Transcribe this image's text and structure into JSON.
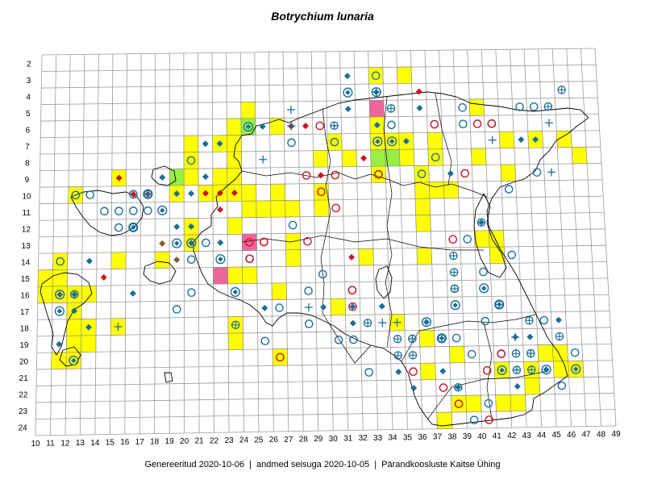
{
  "title": "Botrychium lunaria",
  "footer": "Genereeritud 2020-10-06  |  andmed seisuga 2020-10-05  |  Pärandkoosluste Kaitse Ühing",
  "colors": {
    "yellow": "#ffff00",
    "green": "#99ee44",
    "pink": "#ee6699",
    "teal": "#1a6f99",
    "red": "#cc1122",
    "brown": "#8a5a2b"
  },
  "chart_data": {
    "type": "grid-map",
    "x_ticks": [
      "10",
      "11",
      "12",
      "13",
      "14",
      "15",
      "16",
      "17",
      "18",
      "19",
      "20",
      "21",
      "22",
      "23",
      "24",
      "25",
      "26",
      "27",
      "28",
      "29",
      "30",
      "31",
      "32",
      "33",
      "34",
      "35",
      "36",
      "37",
      "38",
      "39",
      "40",
      "41",
      "42",
      "43",
      "44",
      "45",
      "46",
      "47",
      "48",
      "49"
    ],
    "y_ticks": [
      "2",
      "3",
      "4",
      "5",
      "6",
      "7",
      "8",
      "9",
      "10",
      "11",
      "12",
      "13",
      "14",
      "15",
      "16",
      "17",
      "18",
      "19",
      "20",
      "21",
      "22",
      "23",
      "24"
    ],
    "cells": {
      "yellow": [
        [
          33,
          3
        ],
        [
          35,
          3
        ],
        [
          24,
          5
        ],
        [
          40,
          5
        ],
        [
          23,
          6
        ],
        [
          26,
          6
        ],
        [
          33,
          6
        ],
        [
          20,
          7
        ],
        [
          22,
          7
        ],
        [
          23,
          7
        ],
        [
          30,
          7
        ],
        [
          33,
          7
        ],
        [
          34,
          7
        ],
        [
          35,
          7
        ],
        [
          37,
          7
        ],
        [
          42,
          7
        ],
        [
          44,
          7
        ],
        [
          46,
          7
        ],
        [
          20,
          8
        ],
        [
          23,
          8
        ],
        [
          29,
          8
        ],
        [
          31,
          8
        ],
        [
          35,
          8
        ],
        [
          37,
          8
        ],
        [
          40,
          8
        ],
        [
          47,
          8
        ],
        [
          15,
          9
        ],
        [
          20,
          9
        ],
        [
          22,
          9
        ],
        [
          23,
          9
        ],
        [
          33,
          9
        ],
        [
          36,
          9
        ],
        [
          42,
          9
        ],
        [
          12,
          10
        ],
        [
          19,
          10
        ],
        [
          21,
          10
        ],
        [
          22,
          10
        ],
        [
          23,
          10
        ],
        [
          24,
          10
        ],
        [
          26,
          10
        ],
        [
          29,
          10
        ],
        [
          36,
          10
        ],
        [
          37,
          10
        ],
        [
          38,
          10
        ],
        [
          24,
          11
        ],
        [
          25,
          11
        ],
        [
          26,
          11
        ],
        [
          27,
          11
        ],
        [
          36,
          11
        ],
        [
          29,
          11
        ],
        [
          20,
          12
        ],
        [
          23,
          12
        ],
        [
          36,
          12
        ],
        [
          20,
          13
        ],
        [
          27,
          13
        ],
        [
          40,
          13
        ],
        [
          41,
          13
        ],
        [
          11,
          14
        ],
        [
          15,
          14
        ],
        [
          18,
          14
        ],
        [
          27,
          14
        ],
        [
          32,
          14
        ],
        [
          36,
          14
        ],
        [
          41,
          14
        ],
        [
          10,
          15
        ],
        [
          11,
          15
        ],
        [
          24,
          15
        ],
        [
          10,
          16
        ],
        [
          11,
          16
        ],
        [
          12,
          16
        ],
        [
          13,
          16
        ],
        [
          26,
          16
        ],
        [
          23,
          15
        ],
        [
          12,
          17
        ],
        [
          30,
          17
        ],
        [
          12,
          18
        ],
        [
          13,
          18
        ],
        [
          15,
          18
        ],
        [
          23,
          18
        ],
        [
          34,
          18
        ],
        [
          12,
          19
        ],
        [
          13,
          19
        ],
        [
          23,
          19
        ],
        [
          36,
          19
        ],
        [
          26,
          20
        ],
        [
          11,
          20
        ],
        [
          12,
          20
        ],
        [
          38,
          20
        ],
        [
          44,
          20
        ],
        [
          45,
          20
        ],
        [
          36,
          21
        ],
        [
          41,
          21
        ],
        [
          43,
          21
        ],
        [
          45,
          21
        ],
        [
          46,
          21
        ],
        [
          43,
          22
        ],
        [
          38,
          23
        ],
        [
          39,
          23
        ],
        [
          41,
          23
        ],
        [
          42,
          23
        ],
        [
          37,
          24
        ]
      ],
      "green": [
        [
          24,
          6
        ],
        [
          19,
          9
        ],
        [
          33,
          8
        ],
        [
          34,
          8
        ]
      ],
      "pink": [
        [
          33,
          5
        ],
        [
          22,
          15
        ],
        [
          24,
          13
        ]
      ]
    },
    "symbols": {
      "open_circle_teal": [
        [
          33,
          3
        ],
        [
          43,
          5
        ],
        [
          44,
          5
        ],
        [
          39,
          5
        ],
        [
          41,
          6
        ],
        [
          34,
          6
        ],
        [
          27,
          7
        ],
        [
          39,
          6
        ],
        [
          37,
          8
        ],
        [
          20,
          8
        ],
        [
          44,
          9
        ],
        [
          12,
          10
        ],
        [
          13,
          10
        ],
        [
          16,
          10
        ],
        [
          17,
          10
        ],
        [
          14,
          11
        ],
        [
          15,
          11
        ],
        [
          16,
          11
        ],
        [
          17,
          11
        ],
        [
          15,
          12
        ],
        [
          16,
          12
        ],
        [
          11,
          14
        ],
        [
          20,
          14
        ],
        [
          12,
          16
        ],
        [
          24,
          14
        ],
        [
          28,
          16
        ],
        [
          29,
          15
        ],
        [
          26,
          17
        ],
        [
          31,
          16
        ],
        [
          25,
          19
        ],
        [
          35,
          19
        ],
        [
          40,
          12
        ],
        [
          39,
          13
        ],
        [
          42,
          14
        ],
        [
          40,
          15
        ],
        [
          38,
          16
        ],
        [
          40,
          18
        ],
        [
          44,
          18
        ],
        [
          41,
          20
        ],
        [
          39,
          20
        ],
        [
          42,
          21
        ],
        [
          37,
          19
        ],
        [
          38,
          19
        ],
        [
          36,
          9
        ],
        [
          30,
          7
        ],
        [
          33,
          9
        ],
        [
          28,
          18
        ],
        [
          30,
          19
        ],
        [
          31,
          19
        ],
        [
          43,
          20
        ],
        [
          19,
          17
        ],
        [
          20,
          16
        ],
        [
          21,
          13
        ],
        [
          27,
          12
        ],
        [
          42,
          10
        ],
        [
          38,
          22
        ],
        [
          46,
          20
        ],
        [
          39,
          24
        ],
        [
          45,
          22
        ],
        [
          40,
          23
        ],
        [
          32,
          21
        ]
      ],
      "open_circle_red": [
        [
          29,
          6
        ],
        [
          37,
          6
        ],
        [
          40,
          6
        ],
        [
          41,
          6
        ],
        [
          39,
          9
        ],
        [
          24,
          13
        ],
        [
          24,
          14
        ],
        [
          29,
          10
        ],
        [
          30,
          11
        ],
        [
          28,
          9
        ],
        [
          30,
          9
        ],
        [
          33,
          9
        ],
        [
          31,
          17
        ],
        [
          31,
          16
        ],
        [
          28,
          13
        ],
        [
          25,
          13
        ],
        [
          35,
          21
        ],
        [
          26,
          20
        ],
        [
          40,
          21
        ],
        [
          38,
          13
        ],
        [
          41,
          20
        ],
        [
          37,
          22
        ],
        [
          38,
          23
        ],
        [
          40,
          24
        ],
        [
          25,
          13
        ]
      ],
      "diamond_teal": [
        [
          31,
          3
        ],
        [
          33,
          4
        ],
        [
          36,
          5
        ],
        [
          31,
          5
        ],
        [
          21,
          7
        ],
        [
          25,
          6
        ],
        [
          27,
          6
        ],
        [
          33,
          6
        ],
        [
          35,
          7
        ],
        [
          22,
          7
        ],
        [
          43,
          7
        ],
        [
          44,
          7
        ],
        [
          18,
          9
        ],
        [
          21,
          9
        ],
        [
          38,
          9
        ],
        [
          20,
          10
        ],
        [
          19,
          10
        ],
        [
          19,
          12
        ],
        [
          20,
          12
        ],
        [
          13,
          14
        ],
        [
          16,
          16
        ],
        [
          12,
          17
        ],
        [
          13,
          18
        ],
        [
          12,
          16
        ],
        [
          11,
          19
        ],
        [
          20,
          13
        ],
        [
          22,
          13
        ],
        [
          25,
          17
        ],
        [
          29,
          17
        ],
        [
          31,
          17
        ],
        [
          31,
          18
        ],
        [
          33,
          17
        ],
        [
          36,
          18
        ],
        [
          40,
          12
        ],
        [
          43,
          19
        ],
        [
          45,
          18
        ],
        [
          42,
          19
        ],
        [
          44,
          21
        ],
        [
          42,
          22
        ],
        [
          35,
          22
        ],
        [
          37,
          21
        ],
        [
          34,
          21
        ],
        [
          38,
          22
        ]
      ],
      "diamond_red": [
        [
          15,
          9
        ],
        [
          16,
          10
        ],
        [
          17,
          10
        ],
        [
          14,
          15
        ],
        [
          21,
          10
        ],
        [
          22,
          10
        ],
        [
          23,
          10
        ],
        [
          27,
          6
        ],
        [
          28,
          6
        ],
        [
          29,
          9
        ],
        [
          32,
          8
        ],
        [
          36,
          4
        ],
        [
          22,
          11
        ],
        [
          31,
          14
        ]
      ],
      "diamond_brown": [
        [
          18,
          13
        ],
        [
          19,
          14
        ],
        [
          11,
          16
        ]
      ],
      "plus_teal": [
        [
          27,
          5
        ],
        [
          27,
          6
        ],
        [
          30,
          6
        ],
        [
          25,
          8
        ],
        [
          33,
          4
        ],
        [
          41,
          7
        ],
        [
          45,
          6
        ],
        [
          45,
          9
        ],
        [
          15,
          18
        ],
        [
          33,
          18
        ],
        [
          28,
          17
        ],
        [
          34,
          18
        ],
        [
          35,
          19
        ],
        [
          37,
          19
        ],
        [
          42,
          19
        ],
        [
          43,
          20
        ],
        [
          42,
          21
        ]
      ],
      "circle_plus_teal": [
        [
          30,
          6
        ],
        [
          34,
          5
        ],
        [
          23,
          18
        ],
        [
          38,
          16
        ],
        [
          38,
          15
        ],
        [
          38,
          14
        ],
        [
          41,
          17
        ],
        [
          43,
          18
        ],
        [
          45,
          19
        ],
        [
          46,
          4
        ],
        [
          45,
          5
        ],
        [
          32,
          18
        ],
        [
          34,
          20
        ],
        [
          43,
          21
        ],
        [
          35,
          20
        ],
        [
          34,
          19
        ],
        [
          42,
          20
        ]
      ],
      "circle_diamond_teal": [
        [
          24,
          6
        ],
        [
          31,
          4
        ],
        [
          33,
          4
        ],
        [
          34,
          7
        ],
        [
          33,
          7
        ],
        [
          16,
          12
        ],
        [
          17,
          10
        ],
        [
          18,
          11
        ],
        [
          20,
          13
        ],
        [
          22,
          14
        ],
        [
          11,
          17
        ],
        [
          12,
          20
        ],
        [
          41,
          17
        ],
        [
          40,
          16
        ],
        [
          38,
          17
        ],
        [
          41,
          21
        ],
        [
          46,
          21
        ],
        [
          44,
          21
        ],
        [
          36,
          18
        ],
        [
          37,
          19
        ],
        [
          11,
          16
        ],
        [
          19,
          13
        ],
        [
          23,
          16
        ]
      ]
    }
  }
}
